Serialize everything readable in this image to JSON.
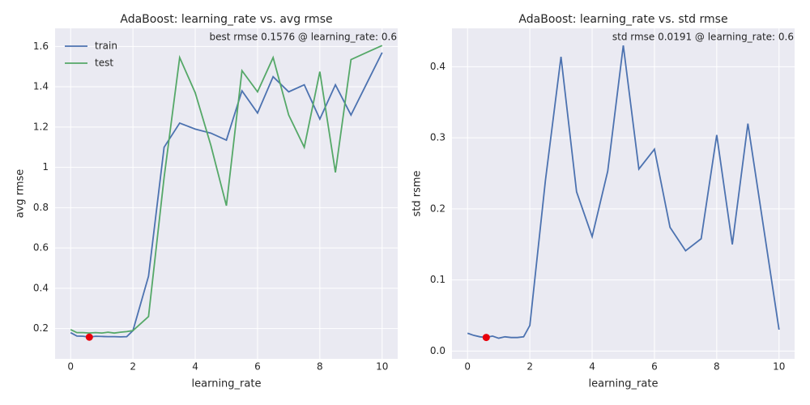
{
  "chart_data": [
    {
      "type": "line",
      "title": "AdaBoost: learning_rate vs. avg rmse",
      "xlabel": "learning_rate",
      "ylabel": "avg rmse",
      "annotation": "best rmse 0.1576 @ learning_rate: 0.6",
      "x": [
        0,
        0.2,
        0.4,
        0.6,
        0.8,
        1.0,
        1.2,
        1.4,
        1.6,
        1.8,
        2.0,
        2.5,
        3,
        3.5,
        4,
        4.5,
        5,
        5.5,
        6,
        6.5,
        7,
        7.5,
        8,
        8.5,
        9,
        9.5,
        10
      ],
      "series": [
        {
          "name": "train",
          "color": "#4c72b0",
          "values": [
            0.18,
            0.163,
            0.162,
            0.1576,
            0.162,
            0.161,
            0.16,
            0.16,
            0.159,
            0.16,
            0.19,
            0.46,
            1.1,
            1.22,
            1.19,
            1.17,
            1.135,
            1.38,
            1.27,
            1.45,
            1.375,
            1.41,
            1.24,
            1.41,
            1.26,
            1.415,
            1.57
          ]
        },
        {
          "name": "test",
          "color": "#55a868",
          "values": [
            0.195,
            0.18,
            0.18,
            0.178,
            0.18,
            0.178,
            0.182,
            0.178,
            0.182,
            0.185,
            0.19,
            0.26,
            0.95,
            1.545,
            1.37,
            1.11,
            0.81,
            1.48,
            1.375,
            1.545,
            1.26,
            1.1,
            1.475,
            0.975,
            1.535,
            1.57,
            1.605
          ]
        }
      ],
      "highlight": {
        "x": 0.6,
        "y": 0.1576,
        "color": "#e8000b"
      },
      "legend": "upper left",
      "xlim": [
        -0.5,
        10.5
      ],
      "ylim": [
        0.05,
        1.69
      ],
      "xticks": [
        0,
        2,
        4,
        6,
        8,
        10
      ],
      "yticks": [
        0.2,
        0.4,
        0.6,
        0.8,
        1.0,
        1.2,
        1.4,
        1.6
      ]
    },
    {
      "type": "line",
      "title": "AdaBoost: learning_rate vs. std rmse",
      "xlabel": "learning_rate",
      "ylabel": "std rsme",
      "annotation": "std rmse 0.0191 @ learning_rate: 0.6",
      "x": [
        0,
        0.2,
        0.4,
        0.6,
        0.8,
        1.0,
        1.2,
        1.4,
        1.6,
        1.8,
        2.0,
        2.5,
        3,
        3.5,
        4,
        4.5,
        5,
        5.5,
        6,
        6.5,
        7,
        7.5,
        8,
        8.5,
        9,
        9.5,
        10
      ],
      "series": [
        {
          "color": "#4c72b0",
          "values": [
            0.025,
            0.022,
            0.02,
            0.0191,
            0.021,
            0.018,
            0.02,
            0.019,
            0.019,
            0.02,
            0.036,
            0.24,
            0.414,
            0.224,
            0.161,
            0.253,
            0.43,
            0.256,
            0.284,
            0.174,
            0.141,
            0.158,
            0.304,
            0.15,
            0.32,
            0.175,
            0.03
          ]
        }
      ],
      "highlight": {
        "x": 0.6,
        "y": 0.0191,
        "color": "#e8000b"
      },
      "xlim": [
        -0.5,
        10.5
      ],
      "ylim": [
        -0.011,
        0.454
      ],
      "xticks": [
        0,
        2,
        4,
        6,
        8,
        10
      ],
      "yticks": [
        {
          "value": 0,
          "label": "0.0"
        },
        0.1,
        0.2,
        0.3,
        0.4
      ]
    }
  ]
}
